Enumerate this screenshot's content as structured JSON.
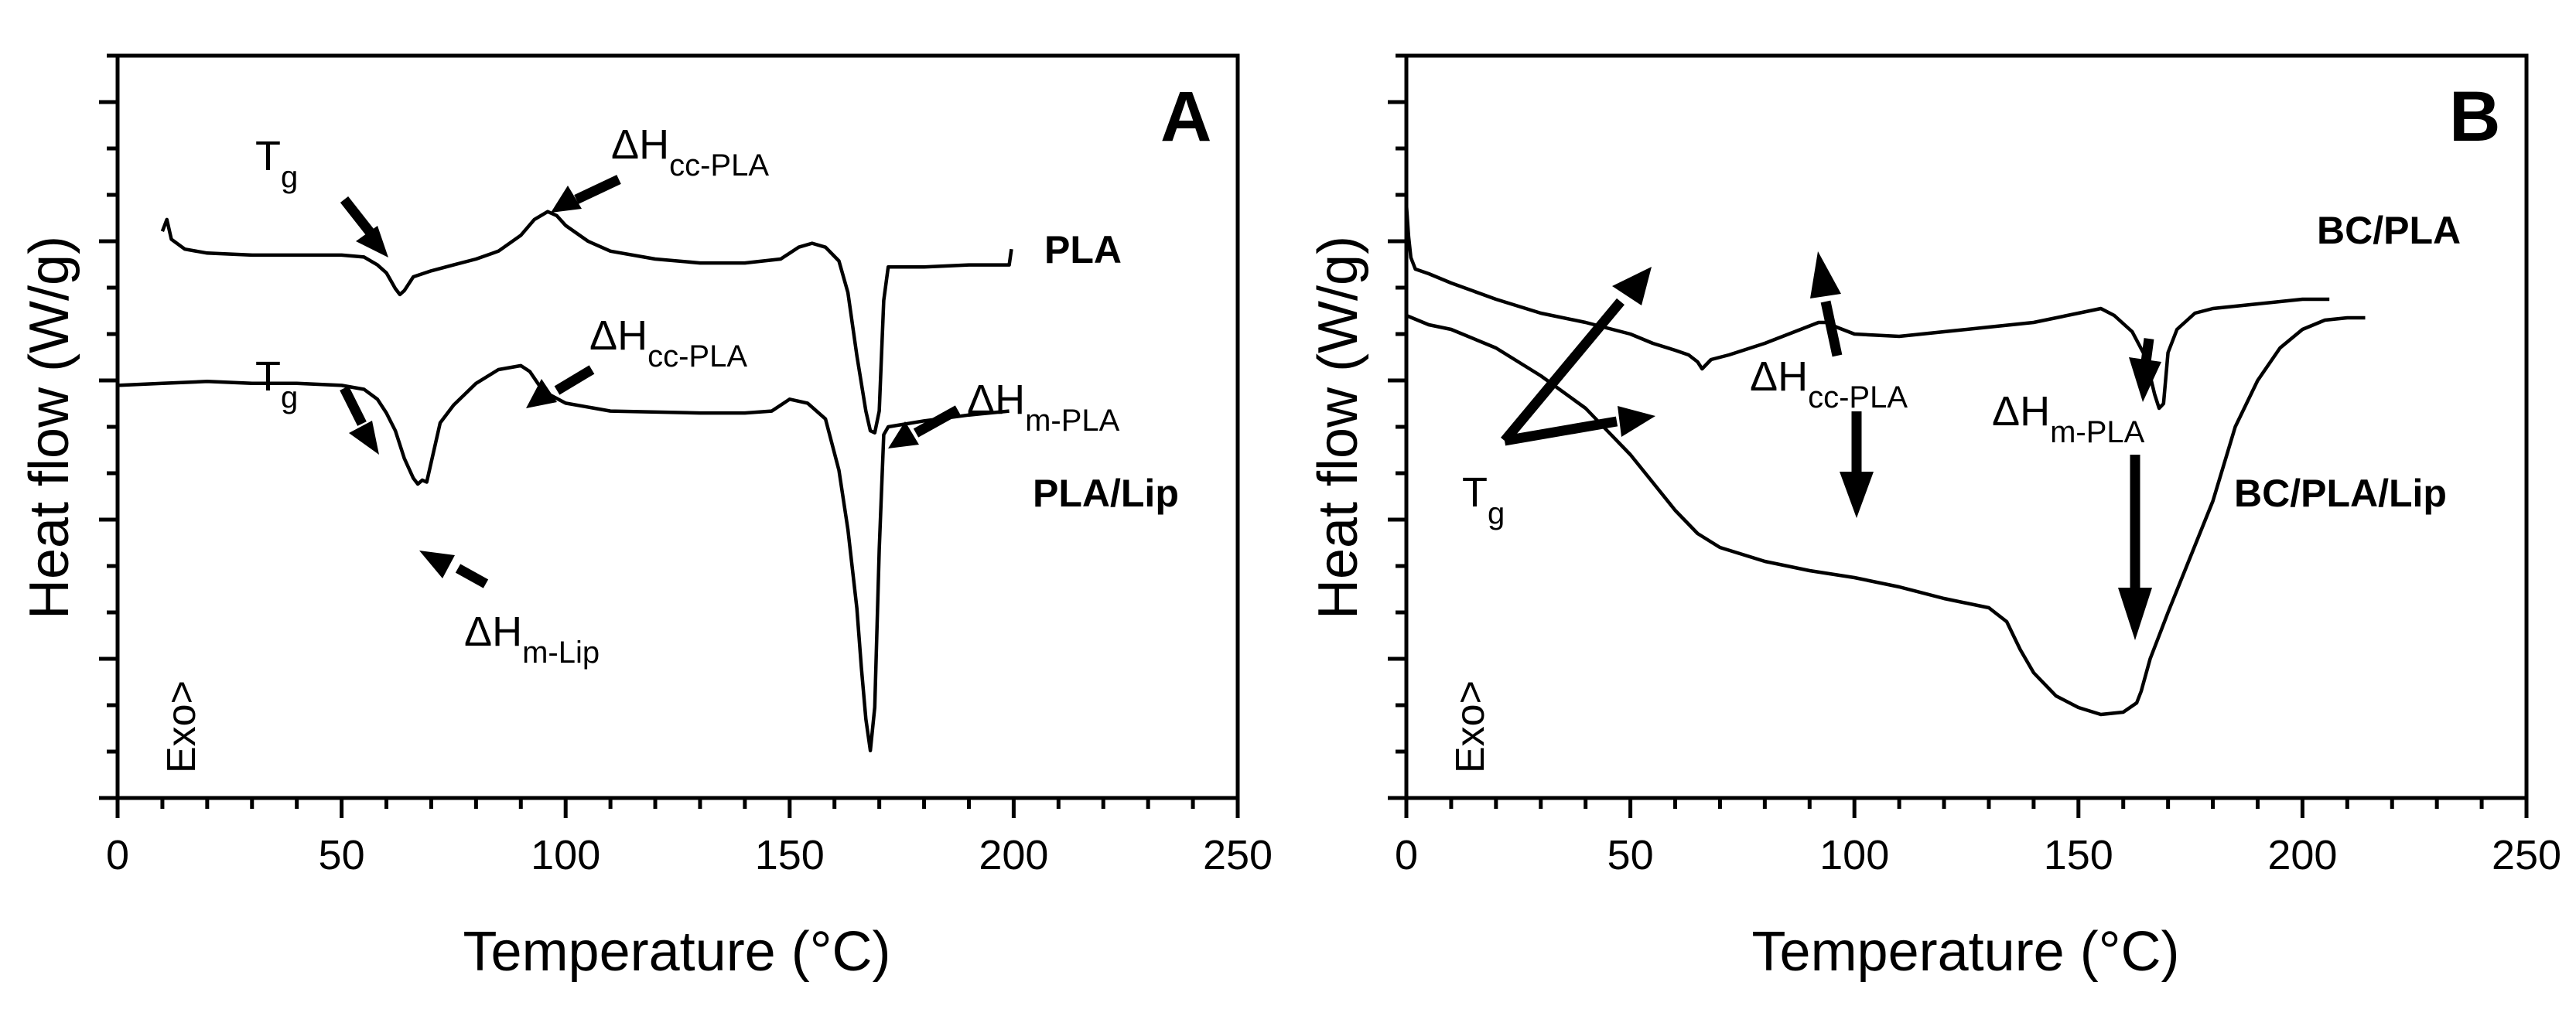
{
  "chart_data": [
    {
      "panel": "A",
      "type": "line",
      "xlabel": "Temperature (°C)",
      "ylabel": "Heat flow (W/g)",
      "xlim": [
        0,
        250
      ],
      "xticks": [
        0,
        50,
        100,
        150,
        200,
        250
      ],
      "y_tick_labels_shown": false,
      "exo_label": "Exo>",
      "series": [
        {
          "name": "PLA",
          "points": [
            [
              10,
              -1.45
            ],
            [
              11,
              -1.15
            ],
            [
              12,
              -1.65
            ],
            [
              15,
              -1.9
            ],
            [
              20,
              -2.0
            ],
            [
              30,
              -2.05
            ],
            [
              40,
              -2.05
            ],
            [
              50,
              -2.05
            ],
            [
              55,
              -2.1
            ],
            [
              58,
              -2.3
            ],
            [
              60,
              -2.5
            ],
            [
              62,
              -2.9
            ],
            [
              63,
              -3.05
            ],
            [
              64,
              -2.95
            ],
            [
              66,
              -2.6
            ],
            [
              70,
              -2.45
            ],
            [
              75,
              -2.3
            ],
            [
              80,
              -2.15
            ],
            [
              85,
              -1.95
            ],
            [
              90,
              -1.55
            ],
            [
              93,
              -1.15
            ],
            [
              96,
              -0.95
            ],
            [
              98,
              -1.05
            ],
            [
              100,
              -1.3
            ],
            [
              105,
              -1.7
            ],
            [
              110,
              -1.95
            ],
            [
              120,
              -2.15
            ],
            [
              130,
              -2.25
            ],
            [
              140,
              -2.25
            ],
            [
              148,
              -2.15
            ],
            [
              152,
              -1.85
            ],
            [
              155,
              -1.75
            ],
            [
              158,
              -1.85
            ],
            [
              161,
              -2.2
            ],
            [
              163,
              -3.0
            ],
            [
              165,
              -4.6
            ],
            [
              167,
              -6.0
            ],
            [
              168,
              -6.5
            ],
            [
              169,
              -6.55
            ],
            [
              170,
              -6.0
            ],
            [
              171,
              -3.2
            ],
            [
              172,
              -2.35
            ],
            [
              175,
              -2.35
            ],
            [
              180,
              -2.35
            ],
            [
              190,
              -2.3
            ],
            [
              199,
              -2.3
            ],
            [
              199.5,
              -1.9
            ]
          ]
        },
        {
          "name": "PLA/Lip",
          "points": [
            [
              0,
              -5.35
            ],
            [
              10,
              -5.3
            ],
            [
              20,
              -5.25
            ],
            [
              30,
              -5.3
            ],
            [
              40,
              -5.3
            ],
            [
              50,
              -5.35
            ],
            [
              55,
              -5.45
            ],
            [
              58,
              -5.7
            ],
            [
              60,
              -6.05
            ],
            [
              62,
              -6.5
            ],
            [
              64,
              -7.2
            ],
            [
              66,
              -7.7
            ],
            [
              67,
              -7.85
            ],
            [
              68,
              -7.75
            ],
            [
              69,
              -7.8
            ],
            [
              70,
              -7.3
            ],
            [
              72,
              -6.3
            ],
            [
              75,
              -5.85
            ],
            [
              80,
              -5.3
            ],
            [
              85,
              -4.95
            ],
            [
              90,
              -4.85
            ],
            [
              92,
              -5.0
            ],
            [
              95,
              -5.5
            ],
            [
              100,
              -5.8
            ],
            [
              110,
              -6.0
            ],
            [
              130,
              -6.05
            ],
            [
              140,
              -6.05
            ],
            [
              146,
              -6.0
            ],
            [
              150,
              -5.7
            ],
            [
              154,
              -5.8
            ],
            [
              158,
              -6.2
            ],
            [
              161,
              -7.5
            ],
            [
              163,
              -9.0
            ],
            [
              165,
              -11.0
            ],
            [
              166,
              -12.5
            ],
            [
              167,
              -13.8
            ],
            [
              168,
              -14.6
            ],
            [
              169,
              -13.5
            ],
            [
              170,
              -9.5
            ],
            [
              171,
              -6.6
            ],
            [
              172,
              -6.4
            ],
            [
              180,
              -6.25
            ],
            [
              190,
              -6.1
            ],
            [
              199,
              -6.0
            ]
          ]
        }
      ],
      "annotations": [
        {
          "main": "T",
          "sub": "g"
        },
        {
          "main": "ΔH",
          "sub": "cc-PLA"
        },
        {
          "main": "T",
          "sub": "g"
        },
        {
          "main": "ΔH",
          "sub": "cc-PLA"
        },
        {
          "main": "ΔH",
          "sub": "m-PLA"
        },
        {
          "main": "ΔH",
          "sub": "m-Lip"
        }
      ],
      "series_labels": [
        "PLA",
        "PLA/Lip"
      ]
    },
    {
      "panel": "B",
      "type": "line",
      "xlabel": "Temperature (°C)",
      "ylabel": "Heat flow (W/g)",
      "xlim": [
        0,
        250
      ],
      "xticks": [
        0,
        50,
        100,
        150,
        200,
        250
      ],
      "y_tick_labels_shown": false,
      "exo_label": "Exo>",
      "series": [
        {
          "name": "BC/PLA",
          "points": [
            [
              0,
              -0.2
            ],
            [
              0.5,
              -0.9
            ],
            [
              1,
              -1.35
            ],
            [
              2,
              -1.6
            ],
            [
              5,
              -1.7
            ],
            [
              10,
              -1.9
            ],
            [
              20,
              -2.25
            ],
            [
              30,
              -2.55
            ],
            [
              40,
              -2.75
            ],
            [
              50,
              -3.0
            ],
            [
              55,
              -3.2
            ],
            [
              60,
              -3.35
            ],
            [
              63,
              -3.45
            ],
            [
              65,
              -3.6
            ],
            [
              66,
              -3.75
            ],
            [
              68,
              -3.55
            ],
            [
              72,
              -3.45
            ],
            [
              80,
              -3.2
            ],
            [
              88,
              -2.9
            ],
            [
              92,
              -2.75
            ],
            [
              94,
              -2.75
            ],
            [
              96,
              -2.85
            ],
            [
              100,
              -3.0
            ],
            [
              110,
              -3.05
            ],
            [
              120,
              -2.95
            ],
            [
              130,
              -2.85
            ],
            [
              140,
              -2.75
            ],
            [
              150,
              -2.55
            ],
            [
              155,
              -2.45
            ],
            [
              158,
              -2.6
            ],
            [
              162,
              -2.95
            ],
            [
              165,
              -3.5
            ],
            [
              167,
              -4.3
            ],
            [
              168,
              -4.6
            ],
            [
              169,
              -4.5
            ],
            [
              170,
              -3.4
            ],
            [
              172,
              -2.9
            ],
            [
              176,
              -2.55
            ],
            [
              180,
              -2.45
            ],
            [
              190,
              -2.35
            ],
            [
              200,
              -2.25
            ],
            [
              206,
              -2.25
            ]
          ]
        },
        {
          "name": "BC/PLA/Lip",
          "points": [
            [
              0,
              -2.6
            ],
            [
              5,
              -2.8
            ],
            [
              10,
              -2.9
            ],
            [
              20,
              -3.3
            ],
            [
              30,
              -3.9
            ],
            [
              40,
              -4.6
            ],
            [
              45,
              -5.1
            ],
            [
              50,
              -5.6
            ],
            [
              55,
              -6.2
            ],
            [
              60,
              -6.8
            ],
            [
              65,
              -7.3
            ],
            [
              70,
              -7.6
            ],
            [
              80,
              -7.9
            ],
            [
              90,
              -8.1
            ],
            [
              100,
              -8.25
            ],
            [
              110,
              -8.45
            ],
            [
              120,
              -8.7
            ],
            [
              130,
              -8.9
            ],
            [
              134,
              -9.2
            ],
            [
              137,
              -9.8
            ],
            [
              140,
              -10.3
            ],
            [
              145,
              -10.8
            ],
            [
              150,
              -11.05
            ],
            [
              155,
              -11.2
            ],
            [
              160,
              -11.15
            ],
            [
              163,
              -10.95
            ],
            [
              164,
              -10.7
            ],
            [
              166,
              -10.0
            ],
            [
              168,
              -9.5
            ],
            [
              170,
              -9.0
            ],
            [
              175,
              -7.8
            ],
            [
              180,
              -6.6
            ],
            [
              185,
              -5.0
            ],
            [
              190,
              -4.0
            ],
            [
              195,
              -3.3
            ],
            [
              200,
              -2.9
            ],
            [
              205,
              -2.7
            ],
            [
              210,
              -2.65
            ],
            [
              214,
              -2.65
            ]
          ]
        }
      ],
      "annotations": [
        {
          "main": "T",
          "sub": "g"
        },
        {
          "main": "ΔH",
          "sub": "cc-PLA"
        },
        {
          "main": "ΔH",
          "sub": "m-PLA"
        }
      ],
      "series_labels": [
        "BC/PLA",
        "BC/PLA/Lip"
      ]
    }
  ]
}
